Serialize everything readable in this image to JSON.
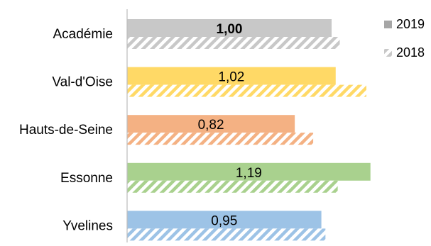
{
  "chart_data": {
    "type": "bar",
    "orientation": "horizontal",
    "categories": [
      "Académie",
      "Val-d'Oise",
      "Hauts-de-Seine",
      "Essonne",
      "Yvelines"
    ],
    "series": [
      {
        "name": "2019",
        "values": [
          1.0,
          1.02,
          0.82,
          1.19,
          0.95
        ],
        "value_labels": [
          "1,00",
          "1,02",
          "0,82",
          "1,19",
          "0,95"
        ],
        "bold_labels": [
          true,
          false,
          false,
          false,
          false
        ],
        "style": "solid"
      },
      {
        "name": "2018",
        "values": [
          1.04,
          1.17,
          0.91,
          1.03,
          0.97
        ],
        "style": "hatched"
      }
    ],
    "category_colors": [
      "#c8c8c8",
      "#ffd966",
      "#f4b183",
      "#a9d18e",
      "#9dc3e6"
    ],
    "legend_swatch_colors": {
      "2019": "#a6a6a6",
      "2018": "#c8c8c8"
    },
    "xlim": [
      0,
      1.25
    ],
    "legend_position": "right",
    "grid": false
  }
}
